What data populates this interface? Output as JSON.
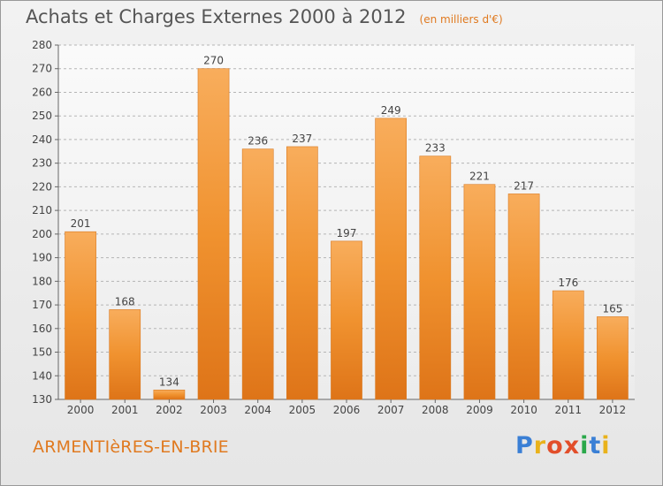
{
  "chart_data": {
    "type": "bar",
    "title": "Achats et Charges Externes 2000 à 2012",
    "unit_label": "(en milliers d'€)",
    "categories": [
      "2000",
      "2001",
      "2002",
      "2003",
      "2004",
      "2005",
      "2006",
      "2007",
      "2008",
      "2009",
      "2010",
      "2011",
      "2012"
    ],
    "values": [
      201,
      168,
      134,
      270,
      236,
      237,
      197,
      249,
      233,
      221,
      217,
      176,
      165
    ],
    "ylim": [
      130,
      280
    ],
    "yticks": [
      130,
      140,
      150,
      160,
      170,
      180,
      190,
      200,
      210,
      220,
      230,
      240,
      250,
      260,
      270,
      280
    ],
    "grid": true,
    "bar_color": "#f0922f",
    "bar_color_light": "#f8ad5c",
    "bar_color_dark": "#de7418"
  },
  "footer": {
    "commune": "ARMENTIèRES-EN-BRIE",
    "logo_text": "Proxiti"
  },
  "colors": {
    "accent": "#e07a20",
    "title": "#555555"
  }
}
